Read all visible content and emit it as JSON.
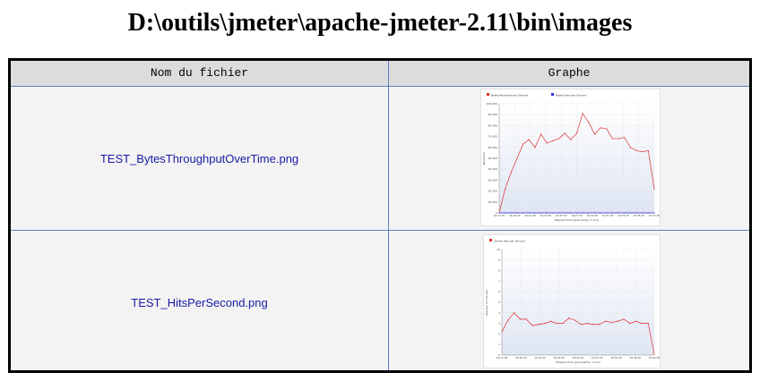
{
  "page": {
    "title": "D:\\outils\\jmeter\\apache-jmeter-2.11\\bin\\images"
  },
  "table": {
    "headers": [
      "Nom du fichier",
      "Graphe"
    ],
    "rows": [
      {
        "file_name": "TEST_BytesThroughputOverTime.png",
        "thumbnail": {
          "legend": [
            "Bytes Received per Second",
            "Bytes Sent per Second"
          ],
          "legend_colors": [
            "#e03030",
            "#3030e0"
          ],
          "y_ticks": [
            "0",
            "10 000",
            "20 000",
            "30 000",
            "40 000",
            "50 000",
            "60 000",
            "70 000",
            "80 000",
            "90 000",
            "100 000"
          ],
          "y_max": 100000,
          "y_label": "Bytes/sec",
          "x_ticks": [
            "16:17:30",
            "16:19:30",
            "16:21:30",
            "16:23:30",
            "16:25:30",
            "16:27:30",
            "16:29:30",
            "16:31:30",
            "16:33:30",
            "16:35:30",
            "16:37:30"
          ],
          "x_label": "Elapsed time (granularity: 1 min)",
          "series": [
            {
              "name": "Bytes Received per Second",
              "color": "#e03030",
              "values": [
                0,
                22000,
                37000,
                50000,
                63000,
                67000,
                60000,
                72000,
                64000,
                66000,
                68000,
                73000,
                67000,
                73000,
                91000,
                83000,
                72000,
                78000,
                77000,
                68000,
                68000,
                69000,
                60000,
                57000,
                56000,
                57000,
                22000
              ]
            },
            {
              "name": "Bytes Sent per Second",
              "color": "#3030e0",
              "values": [
                0,
                0,
                0,
                0,
                0,
                0,
                0,
                0,
                0,
                0,
                0,
                0,
                0,
                0,
                0,
                0,
                0,
                0,
                0,
                0,
                0,
                0,
                0,
                0,
                0,
                0,
                0
              ]
            }
          ]
        }
      },
      {
        "file_name": "TEST_HitsPerSecond.png",
        "thumbnail": {
          "legend": [
            "Server Hits per Second"
          ],
          "legend_colors": [
            "#e03030"
          ],
          "y_ticks": [
            "0",
            "1",
            "2",
            "3",
            "4",
            "5",
            "6",
            "7",
            "8",
            "9",
            "10"
          ],
          "y_max": 10,
          "y_label": "Number of hits /sec",
          "x_ticks": [
            "16:17:30",
            "16:20:30",
            "16:23:30",
            "16:26:30",
            "16:29:30",
            "16:32:30",
            "16:35:30",
            "16:38:30",
            "16:41:30"
          ],
          "x_label": "Elapsed time (granularity: 1 min)",
          "series": [
            {
              "name": "Server Hits per Second",
              "color": "#e03030",
              "values": [
                2.2,
                3.3,
                4.0,
                3.4,
                3.4,
                2.8,
                2.9,
                3.0,
                3.2,
                3.0,
                3.0,
                3.5,
                3.3,
                2.9,
                3.0,
                2.9,
                2.9,
                3.2,
                3.1,
                3.2,
                3.4,
                3.0,
                3.2,
                3.0,
                3.0,
                0.1
              ]
            }
          ]
        }
      }
    ]
  }
}
